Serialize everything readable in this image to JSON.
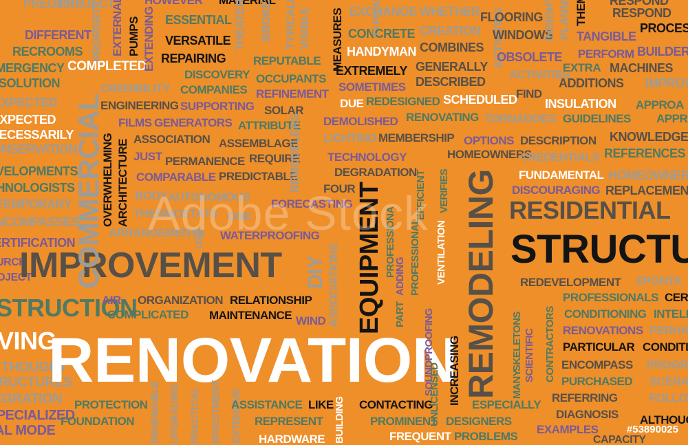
{
  "watermark": "Adobe Stock",
  "stock_id": "#53890025",
  "words": {
    "renovation": "RENOVATION",
    "improvement": "IMPROVEMENT",
    "structure": "STRUCTU",
    "residential": "RESIDENTIAL",
    "remodeling": "REMODELING",
    "equipment": "EQUIPMENT",
    "commercial": "COMMERCIAL",
    "completed": "COMPLETED",
    "versatile": "VERSATILE",
    "repairing": "REPAIRING",
    "essential": "ESSENTIAL",
    "handyman": "HANDYMAN",
    "extremely": "EXTREMELY",
    "concrete": "CONCRETE",
    "exchange": "EXCHANGE",
    "whether": "WHETHER",
    "flooring": "FLOORING",
    "respond": "RESPOND",
    "process": "PROCESS",
    "windows": "WINDOWS",
    "tangible": "TANGIBLE",
    "combines": "COMBINES",
    "obsolete": "OBSOLETE",
    "builder": "BUILDER",
    "machines": "MACHINES",
    "extra": "EXTRA",
    "additions": "ADDITIONS",
    "perform": "PERFORM",
    "improve": "IMPROVE",
    "different": "DIFFERENT",
    "predicts": "PREDICTS",
    "recrooms": "RECROOMS",
    "emergency": "EMERGENCY",
    "solution": "SOLUTION",
    "credibility": "CREDIBILITY",
    "engineering": "ENGINEERING",
    "discovery": "DISCOVERY",
    "companies": "COMPANIES",
    "supporting": "SUPPORTING",
    "reputable": "REPUTABLE",
    "occupants": "OCCUPANTS",
    "refinement": "REFINEMENT",
    "solar": "SOLAR",
    "redesigned": "REDESIGNED",
    "scheduled": "SCHEDULED",
    "insulation": "INSULATION",
    "due": "DUE",
    "generally": "GENERALLY",
    "described": "DESCRIBED",
    "activities": "ACTIVITIES",
    "renovating": "RENOVATING",
    "tornadoes": "TORNADOES",
    "guidelines": "GUIDELINES",
    "approach": "APPROA",
    "films": "FILMS",
    "generators": "GENERATORS",
    "attribute": "ATTRIBUTE",
    "demolished": "DEMOLISHED",
    "lighting": "LIGHTING",
    "membership": "MEMBERSHIP",
    "options": "OPTIONS",
    "description": "DESCRIPTION",
    "knowledge": "KNOWLEDGE",
    "association": "ASSOCIATION",
    "assemblage": "ASSEMBLAGE",
    "homeowners": "HOMEOWNERS",
    "credentials": "CREDENTIALS",
    "references": "REFERENCES",
    "just": "JUST",
    "permanence": "PERMANENCE",
    "require": "REQUIRE",
    "technology": "TECHNOLOGY",
    "comparable": "COMPARABLE",
    "predictable": "PREDICTABLE",
    "degradation": "DEGRADATION",
    "fundamental": "FUNDAMENTAL",
    "homeowner": "HOMEOWNER",
    "discouraging": "DISCOURAGING",
    "replacement": "REPLACEMENT",
    "body": "BODY",
    "autonomous": "AUTONOMOUS",
    "four": "FOUR",
    "thermostats": "THERMOSTATS",
    "forecasting": "FORECASTING",
    "one": "ONE",
    "arrangements": "ARRANGEMENTS",
    "waterproofing": "WATERPROOFING",
    "expected": "EXPECTED",
    "necessarily": "NECESSARILY",
    "conservation": "CONSERVATION",
    "developments": "DEVELOPMENTS",
    "technologists": "TECHNOLOGISTS",
    "temporary": "TEMPORARY",
    "encompasses": "ENCOMPASSES",
    "certification": "CERTIFICATION",
    "church": "CHURCH",
    "project": "PROJECT",
    "redevelopment": "REDEVELOPMENT",
    "spontaneous": "SPONTA",
    "professionals": "PROFESSIONALS",
    "conditioning": "CONDITIONING",
    "renovations": "RENOVATIONS",
    "perhaps": "PERHA",
    "particular": "PARTICULAR",
    "condition": "CONDITI",
    "encompass": "ENCOMPASS",
    "program": "PROGRA",
    "purchased": "PURCHASED",
    "scenario": "SCENAR",
    "referring": "REFERRING",
    "following": "FOLLOW",
    "diagnosis": "DIAGNOSIS",
    "although": "ALTHOUG",
    "examples": "EXAMPLES",
    "capacity": "CAPACITY",
    "construction": "STRUCTION",
    "air": "AIR",
    "organization": "ORGANIZATION",
    "relationship": "RELATIONSHIP",
    "complicated": "COMPLICATED",
    "maintenance": "MAINTENANCE",
    "wind": "WIND",
    "moving": "VING",
    "thought": "THOUGHT",
    "structures": "TRUCTURES",
    "integration": "EGRATION",
    "specialized": "SPECIALIZED",
    "model": "AL MODE",
    "protection": "PROTECTION",
    "assistance": "ASSISTANCE",
    "like": "LIKE",
    "contacting": "CONTACTING",
    "especially": "ESPECIALLY",
    "foundation": "FOUNDATION",
    "represent": "REPRESENT",
    "prominent": "PROMINENT",
    "designers": "DESIGNERS",
    "hardware": "HARDWARE",
    "frequent": "FREQUENT",
    "problems": "PROBLEMS",
    "overwhelming": "OVERWHELMING",
    "architecture": "ARCHITECTURE",
    "measures": "MEASURES",
    "extending": "EXTENDING",
    "pumps": "PUMPS",
    "theaters": "THEATERS",
    "broken": "BROKEN",
    "property": "PROPERTY",
    "professional": "PROFESSIONAL",
    "ventilation": "VENTILATION",
    "efficient": "EFFICIENT",
    "verifies": "VERIFIES",
    "unlicensed": "UNLICENSED",
    "increasing": "INCREASING",
    "skeletons": "SKELETONS",
    "scientific": "SCIENTIFIC",
    "contractors": "CONTRACTORS",
    "associations": "ASSOCIATIONS",
    "diy": "DIY",
    "remodelers": "REMODELERS",
    "find": "FIND",
    "sometimes": "SOMETIMES",
    "professionals2": "PROFESSIONA",
    "adding": "ADDING",
    "part": "PART",
    "soundproofing": "SOUNDPROOFING",
    "material": "MATERIAL",
    "typically": "TYPICALLY",
    "visible": "VISIBLE",
    "however": "HOWEVER",
    "insight": "INSIGHT",
    "theme": "THEME",
    "planned": "PLANNED",
    "creation": "CREATION",
    "fahrenheit": "CER",
    "intelligent": "INTELL",
    "building": "BUILDING",
    "many": "MANY",
    "sellers": "SELLERS",
    "renewable": "RENEWABLE",
    "upgrading": "UPGRADING",
    "practical": "PRACTICAL",
    "investment": "INVESTMENT",
    "extensive": "EXTENSIVE",
    "external": "EXTERNAL",
    "use": "USE",
    "has": "HAS"
  }
}
